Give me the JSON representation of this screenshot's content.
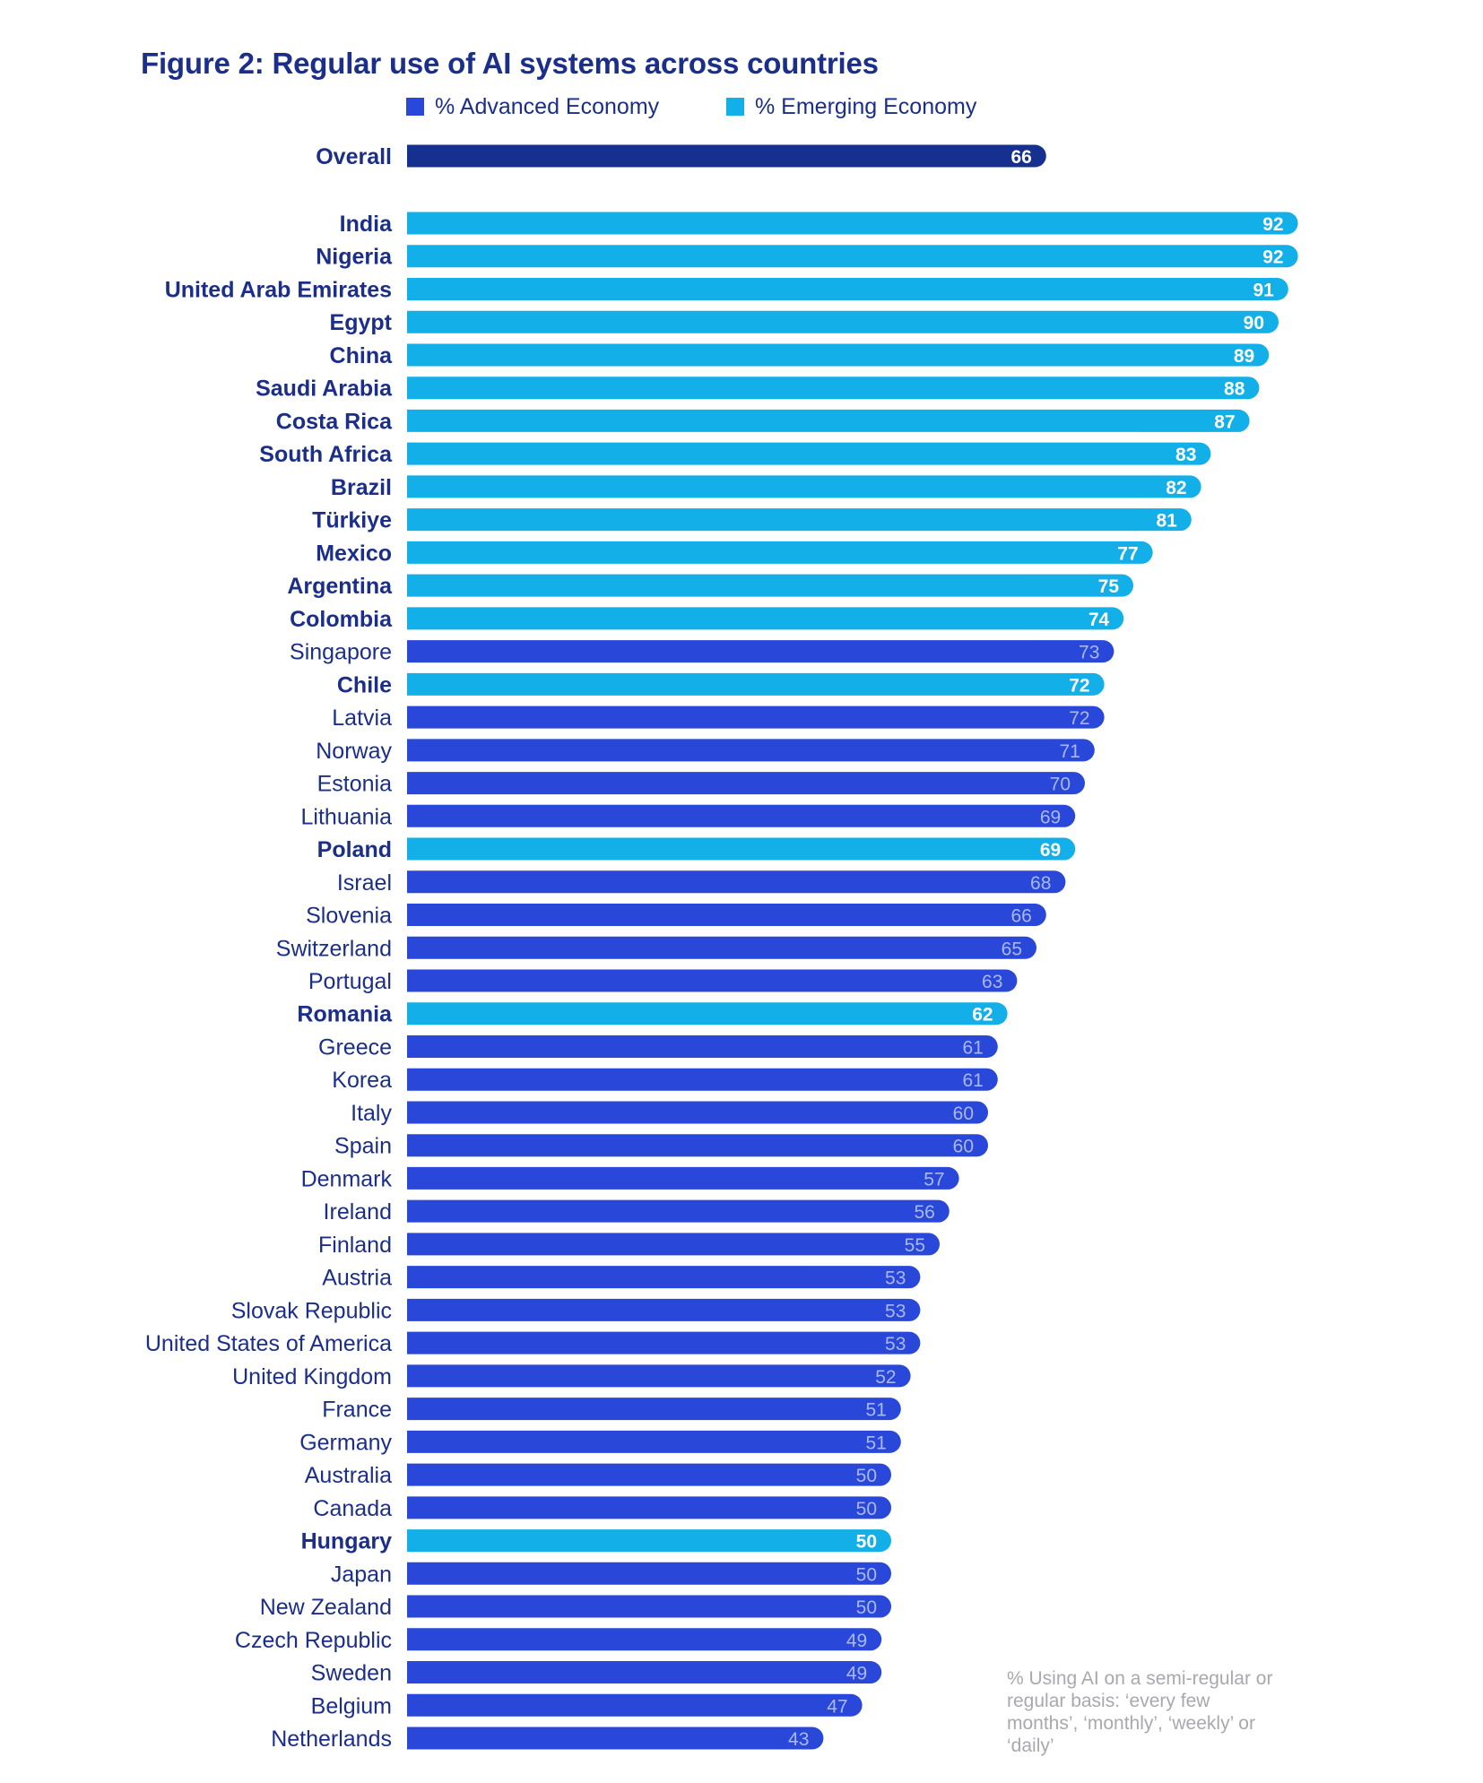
{
  "chart_data": {
    "type": "bar",
    "orientation": "horizontal",
    "title": "Figure 2: Regular use of AI systems across countries",
    "legend": [
      {
        "name": "% Advanced Economy",
        "color": "#2947d9"
      },
      {
        "name": "% Emerging Economy",
        "color": "#12afe8"
      }
    ],
    "legend_placement": "top",
    "grid": false,
    "xlim": [
      0,
      100
    ],
    "overall": {
      "label": "Overall",
      "value": 66,
      "color": "#16308f"
    },
    "categories": [
      "India",
      "Nigeria",
      "United Arab Emirates",
      "Egypt",
      "China",
      "Saudi Arabia",
      "Costa Rica",
      "South Africa",
      "Brazil",
      "Türkiye",
      "Mexico",
      "Argentina",
      "Colombia",
      "Singapore",
      "Chile",
      "Latvia",
      "Norway",
      "Estonia",
      "Lithuania",
      "Poland",
      "Israel",
      "Slovenia",
      "Switzerland",
      "Portugal",
      "Romania",
      "Greece",
      "Korea",
      "Italy",
      "Spain",
      "Denmark",
      "Ireland",
      "Finland",
      "Austria",
      "Slovak Republic",
      "United States of America",
      "United Kingdom",
      "France",
      "Germany",
      "Australia",
      "Canada",
      "Hungary",
      "Japan",
      "New Zealand",
      "Czech Republic",
      "Sweden",
      "Belgium",
      "Netherlands"
    ],
    "values": [
      92,
      92,
      91,
      90,
      89,
      88,
      87,
      83,
      82,
      81,
      77,
      75,
      74,
      73,
      72,
      72,
      71,
      70,
      69,
      69,
      68,
      66,
      65,
      63,
      62,
      61,
      61,
      60,
      60,
      57,
      56,
      55,
      53,
      53,
      53,
      52,
      51,
      51,
      50,
      50,
      50,
      50,
      50,
      49,
      49,
      47,
      43
    ],
    "economy": [
      "Emerging",
      "Emerging",
      "Emerging",
      "Emerging",
      "Emerging",
      "Emerging",
      "Emerging",
      "Emerging",
      "Emerging",
      "Emerging",
      "Emerging",
      "Emerging",
      "Emerging",
      "Advanced",
      "Emerging",
      "Advanced",
      "Advanced",
      "Advanced",
      "Advanced",
      "Emerging",
      "Advanced",
      "Advanced",
      "Advanced",
      "Advanced",
      "Emerging",
      "Advanced",
      "Advanced",
      "Advanced",
      "Advanced",
      "Advanced",
      "Advanced",
      "Advanced",
      "Advanced",
      "Advanced",
      "Advanced",
      "Advanced",
      "Advanced",
      "Advanced",
      "Advanced",
      "Advanced",
      "Emerging",
      "Advanced",
      "Advanced",
      "Advanced",
      "Advanced",
      "Advanced",
      "Advanced"
    ],
    "annotation": "% Using AI on a semi-regular or regular basis: ‘every few months’, ‘monthly’, ‘weekly’ or ‘daily’"
  },
  "colors": {
    "title": "#1a2e8a",
    "label": "#1a2e8a",
    "advanced": "#2947d9",
    "emerging": "#12afe8",
    "overall": "#16308f",
    "advanced_value_text": "#aab8f2",
    "emerging_value_text": "#ffffff",
    "footnote": "#a8a8b0"
  }
}
